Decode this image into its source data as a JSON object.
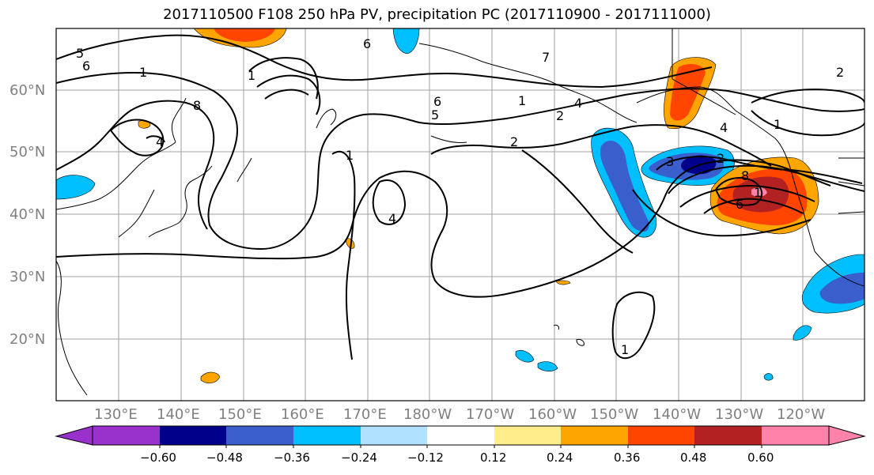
{
  "title": "2017110500 F108 250 hPa PV, precipitation PC (2017110900 - 2017111000)",
  "lat_labels": [
    "60°N",
    "50°N",
    "40°N",
    "30°N",
    "20°N"
  ],
  "lon_labels": [
    "130°E",
    "140°E",
    "150°E",
    "160°E",
    "170°E",
    "180°W",
    "170°W",
    "160°W",
    "150°W",
    "140°W",
    "130°W",
    "120°W"
  ],
  "colorbar": {
    "ticks": [
      "−0.60",
      "−0.48",
      "−0.36",
      "−0.24",
      "−0.12",
      "0.12",
      "0.24",
      "0.36",
      "0.48",
      "0.60"
    ],
    "colors": [
      "#9932cc",
      "#00008b",
      "#3a5fcd",
      "#00bfff",
      "#b0e2ff",
      "#ffffff",
      "#ffec8b",
      "#ffa500",
      "#ff4500",
      "#b22222",
      "#ff82ab"
    ]
  },
  "contour_labels": [
    "5",
    "6",
    "1",
    "8",
    "4",
    "1",
    "1",
    "6",
    "5",
    "4",
    "1",
    "2",
    "4",
    "6",
    "1",
    "2",
    "1",
    "3",
    "2",
    "4",
    "8",
    "6",
    "1",
    "7",
    "2"
  ]
}
